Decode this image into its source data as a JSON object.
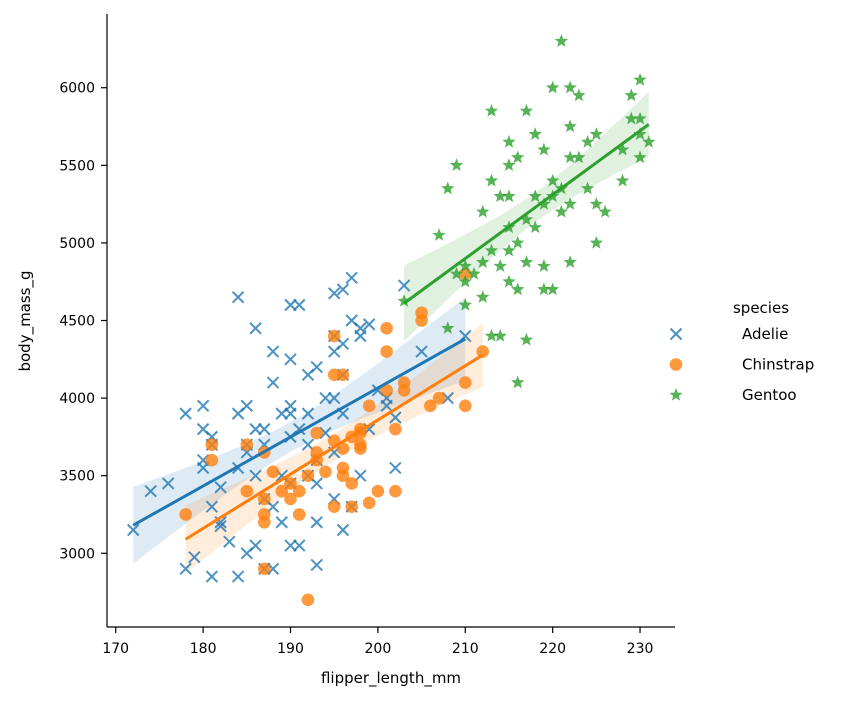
{
  "chart_data": {
    "type": "scatter",
    "title": "",
    "xlabel": "flipper_length_mm",
    "ylabel": "body_mass_g",
    "xlim": [
      169,
      234
    ],
    "ylim": [
      2525,
      6475
    ],
    "xticks": [
      170,
      180,
      190,
      200,
      210,
      220,
      230
    ],
    "yticks": [
      3000,
      3500,
      4000,
      4500,
      5000,
      5500,
      6000
    ],
    "grid": false,
    "legend": {
      "title": "species",
      "placement": "right"
    },
    "regression": true,
    "series": [
      {
        "name": "Adelie",
        "color": "#1f77b4",
        "marker": "x",
        "points": [
          [
            172,
            3150
          ],
          [
            174,
            3400
          ],
          [
            176,
            3450
          ],
          [
            178,
            3900
          ],
          [
            178,
            2900
          ],
          [
            179,
            2975
          ],
          [
            180,
            3950
          ],
          [
            180,
            3800
          ],
          [
            180,
            3600
          ],
          [
            180,
            3550
          ],
          [
            181,
            3750
          ],
          [
            181,
            3700
          ],
          [
            181,
            3300
          ],
          [
            181,
            2850
          ],
          [
            182,
            3200
          ],
          [
            182,
            3175
          ],
          [
            182,
            3425
          ],
          [
            183,
            3075
          ],
          [
            184,
            4650
          ],
          [
            184,
            3900
          ],
          [
            184,
            3550
          ],
          [
            184,
            2850
          ],
          [
            185,
            3950
          ],
          [
            185,
            3650
          ],
          [
            185,
            3700
          ],
          [
            185,
            3000
          ],
          [
            186,
            4450
          ],
          [
            186,
            3800
          ],
          [
            186,
            3500
          ],
          [
            186,
            3050
          ],
          [
            187,
            3800
          ],
          [
            187,
            3700
          ],
          [
            187,
            3350
          ],
          [
            187,
            2900
          ],
          [
            188,
            4300
          ],
          [
            188,
            4100
          ],
          [
            188,
            3300
          ],
          [
            188,
            2900
          ],
          [
            189,
            3900
          ],
          [
            189,
            3500
          ],
          [
            189,
            3200
          ],
          [
            190,
            4600
          ],
          [
            190,
            4250
          ],
          [
            190,
            3950
          ],
          [
            190,
            3900
          ],
          [
            190,
            3750
          ],
          [
            190,
            3450
          ],
          [
            190,
            3050
          ],
          [
            191,
            4600
          ],
          [
            191,
            3800
          ],
          [
            191,
            3050
          ],
          [
            192,
            4150
          ],
          [
            192,
            3900
          ],
          [
            192,
            3700
          ],
          [
            192,
            3500
          ],
          [
            193,
            4200
          ],
          [
            193,
            3600
          ],
          [
            193,
            3450
          ],
          [
            193,
            3200
          ],
          [
            193,
            2925
          ],
          [
            194,
            4000
          ],
          [
            194,
            3775
          ],
          [
            195,
            4675
          ],
          [
            195,
            4400
          ],
          [
            195,
            4300
          ],
          [
            195,
            4000
          ],
          [
            195,
            3650
          ],
          [
            195,
            3350
          ],
          [
            196,
            4700
          ],
          [
            196,
            4350
          ],
          [
            196,
            4150
          ],
          [
            196,
            3900
          ],
          [
            196,
            3150
          ],
          [
            197,
            4775
          ],
          [
            197,
            4500
          ],
          [
            197,
            3300
          ],
          [
            198,
            4450
          ],
          [
            198,
            4400
          ],
          [
            198,
            3500
          ],
          [
            199,
            4475
          ],
          [
            199,
            3800
          ],
          [
            200,
            4050
          ],
          [
            201,
            4000
          ],
          [
            201,
            3950
          ],
          [
            202,
            3875
          ],
          [
            202,
            3550
          ],
          [
            203,
            4725
          ],
          [
            205,
            4300
          ],
          [
            208,
            4000
          ],
          [
            210,
            4400
          ]
        ]
      },
      {
        "name": "Chinstrap",
        "color": "#ff7f0e",
        "marker": "o",
        "points": [
          [
            178,
            3250
          ],
          [
            181,
            3700
          ],
          [
            181,
            3600
          ],
          [
            185,
            3700
          ],
          [
            185,
            3400
          ],
          [
            187,
            3650
          ],
          [
            187,
            3350
          ],
          [
            187,
            3250
          ],
          [
            187,
            3200
          ],
          [
            187,
            2900
          ],
          [
            188,
            3525
          ],
          [
            189,
            3400
          ],
          [
            190,
            3450
          ],
          [
            190,
            3350
          ],
          [
            191,
            3250
          ],
          [
            191,
            3400
          ],
          [
            192,
            2700
          ],
          [
            192,
            3500
          ],
          [
            193,
            3775
          ],
          [
            193,
            3650
          ],
          [
            193,
            3600
          ],
          [
            194,
            3525
          ],
          [
            195,
            4400
          ],
          [
            195,
            4150
          ],
          [
            195,
            3725
          ],
          [
            195,
            3300
          ],
          [
            196,
            3550
          ],
          [
            196,
            3500
          ],
          [
            196,
            3675
          ],
          [
            196,
            4150
          ],
          [
            197,
            3450
          ],
          [
            197,
            3300
          ],
          [
            197,
            3750
          ],
          [
            198,
            3775
          ],
          [
            198,
            3700
          ],
          [
            198,
            3800
          ],
          [
            198,
            3675
          ],
          [
            199,
            3325
          ],
          [
            199,
            3950
          ],
          [
            200,
            3400
          ],
          [
            201,
            4450
          ],
          [
            201,
            4300
          ],
          [
            201,
            4050
          ],
          [
            202,
            3800
          ],
          [
            202,
            3400
          ],
          [
            203,
            4100
          ],
          [
            203,
            4050
          ],
          [
            205,
            4550
          ],
          [
            205,
            4500
          ],
          [
            206,
            3950
          ],
          [
            207,
            4000
          ],
          [
            210,
            4800
          ],
          [
            210,
            4100
          ],
          [
            210,
            3950
          ],
          [
            212,
            4300
          ]
        ]
      },
      {
        "name": "Gentoo",
        "color": "#2ca02c",
        "marker": "*",
        "points": [
          [
            203,
            4625
          ],
          [
            207,
            5050
          ],
          [
            208,
            5350
          ],
          [
            208,
            4450
          ],
          [
            209,
            5500
          ],
          [
            209,
            4800
          ],
          [
            210,
            4850
          ],
          [
            210,
            4600
          ],
          [
            210,
            4750
          ],
          [
            211,
            4800
          ],
          [
            212,
            5200
          ],
          [
            212,
            4875
          ],
          [
            212,
            4650
          ],
          [
            213,
            5850
          ],
          [
            213,
            5400
          ],
          [
            213,
            4950
          ],
          [
            213,
            4400
          ],
          [
            214,
            5300
          ],
          [
            214,
            4850
          ],
          [
            214,
            4400
          ],
          [
            215,
            5650
          ],
          [
            215,
            5500
          ],
          [
            215,
            5300
          ],
          [
            215,
            5100
          ],
          [
            215,
            4950
          ],
          [
            215,
            4750
          ],
          [
            216,
            5550
          ],
          [
            216,
            5000
          ],
          [
            216,
            4700
          ],
          [
            216,
            4100
          ],
          [
            217,
            5850
          ],
          [
            217,
            5150
          ],
          [
            217,
            4875
          ],
          [
            217,
            4375
          ],
          [
            218,
            5700
          ],
          [
            218,
            5300
          ],
          [
            218,
            5100
          ],
          [
            219,
            5600
          ],
          [
            219,
            5250
          ],
          [
            219,
            4850
          ],
          [
            219,
            4700
          ],
          [
            220,
            6000
          ],
          [
            220,
            5400
          ],
          [
            220,
            5300
          ],
          [
            220,
            4700
          ],
          [
            221,
            6300
          ],
          [
            221,
            5350
          ],
          [
            221,
            5200
          ],
          [
            222,
            6000
          ],
          [
            222,
            5750
          ],
          [
            222,
            5550
          ],
          [
            222,
            5250
          ],
          [
            222,
            4875
          ],
          [
            223,
            5950
          ],
          [
            223,
            5550
          ],
          [
            224,
            5650
          ],
          [
            224,
            5350
          ],
          [
            225,
            5700
          ],
          [
            225,
            5250
          ],
          [
            225,
            5000
          ],
          [
            226,
            5200
          ],
          [
            228,
            5600
          ],
          [
            228,
            5400
          ],
          [
            229,
            5950
          ],
          [
            229,
            5800
          ],
          [
            230,
            6050
          ],
          [
            230,
            5800
          ],
          [
            230,
            5700
          ],
          [
            230,
            5550
          ],
          [
            231,
            5650
          ]
        ]
      }
    ]
  }
}
